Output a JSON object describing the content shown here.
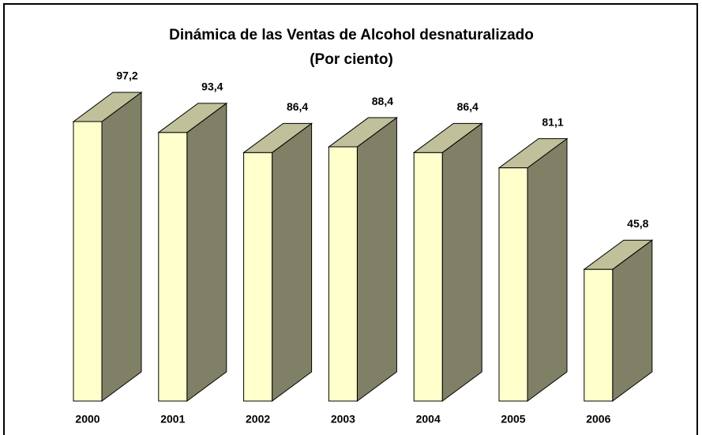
{
  "chart_data": {
    "type": "bar3d",
    "title": "Dinámica de las Ventas de Alcohol desnaturalizado",
    "subtitle": "(Por ciento)",
    "categories": [
      "2000",
      "2001",
      "2002",
      "2003",
      "2004",
      "2005",
      "2006"
    ],
    "values": [
      97.2,
      93.4,
      86.4,
      88.4,
      86.4,
      81.1,
      45.8
    ],
    "value_labels": [
      "97,2",
      "93,4",
      "86,4",
      "88,4",
      "86,4",
      "81,1",
      "45,8"
    ],
    "color": "#ffffcc"
  }
}
